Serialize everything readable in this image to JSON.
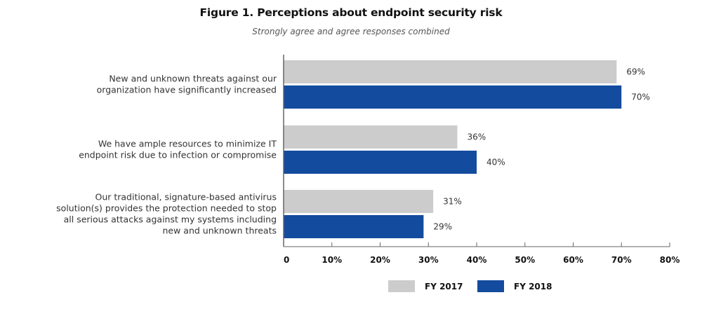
{
  "chart_data": {
    "type": "bar",
    "orientation": "horizontal",
    "title": "Figure 1. Perceptions about endpoint security risk",
    "subtitle": "Strongly agree and agree responses combined",
    "categories": [
      [
        "New and unknown threats against our",
        "organization have significantly increased"
      ],
      [
        "We have ample resources to minimize IT",
        "endpoint risk due to infection or compromise"
      ],
      [
        "Our traditional, signature-based antivirus",
        "solution(s) provides the protection needed to stop",
        "all serious attacks against my systems including",
        "new and unknown threats"
      ]
    ],
    "series": [
      {
        "name": "FY 2017",
        "color": "#cccccc",
        "values": [
          69,
          36,
          31
        ]
      },
      {
        "name": "FY 2018",
        "color": "#134b9e",
        "values": [
          70,
          40,
          29
        ]
      }
    ],
    "value_suffix": "%",
    "xlim": [
      0,
      80
    ],
    "xticks": [
      0,
      10,
      20,
      30,
      40,
      50,
      60,
      70,
      80
    ],
    "xtick_labels": [
      "0",
      "10%",
      "20%",
      "30%",
      "40%",
      "50%",
      "60%",
      "70%",
      "80%"
    ],
    "xlabel": "",
    "ylabel": "",
    "grid": false,
    "legend_position": "bottom-center"
  }
}
